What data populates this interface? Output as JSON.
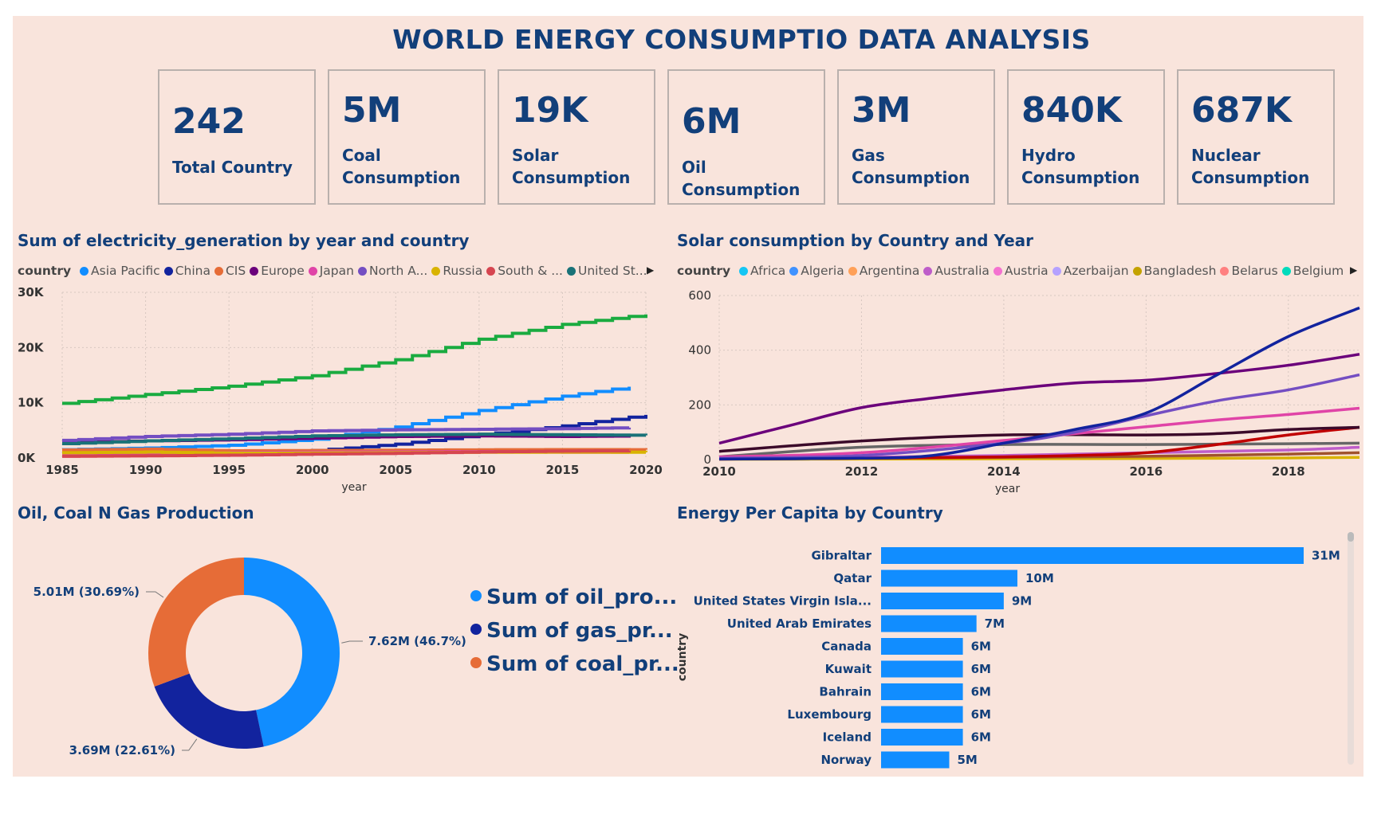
{
  "title": "WORLD ENERGY CONSUMPTIO DATA ANALYSIS",
  "kpis": [
    {
      "value": "242",
      "label": "Total Country"
    },
    {
      "value": "5M",
      "label": "Coal Consumption"
    },
    {
      "value": "19K",
      "label": "Solar Consumption"
    },
    {
      "value": "6M",
      "label": "Oil Consumption"
    },
    {
      "value": "3M",
      "label": "Gas Consumption"
    },
    {
      "value": "840K",
      "label": "Hydro Consumption"
    },
    {
      "value": "687K",
      "label": "Nuclear Consumption"
    }
  ],
  "chart_data": [
    {
      "type": "line",
      "title": "Sum of electricity_generation by year and country",
      "legend_title": "country",
      "legend_placement": "top",
      "xlabel": "year",
      "ylabel": "",
      "xlim": [
        1985,
        2020
      ],
      "ylim": [
        0,
        30000
      ],
      "x_ticks": [
        "1985",
        "1990",
        "1995",
        "2000",
        "2005",
        "2010",
        "2015",
        "2020"
      ],
      "y_ticks": [
        "0K",
        "10K",
        "20K",
        "30K"
      ],
      "grid": true,
      "series": [
        {
          "name": "Asia Pacific",
          "color": "#118dff",
          "x": [
            1985,
            1990,
            1995,
            2000,
            2005,
            2010,
            2015,
            2019
          ],
          "y": [
            1500,
            1800,
            2300,
            3400,
            5600,
            8600,
            11200,
            12900
          ]
        },
        {
          "name": "China",
          "color": "#12239e",
          "x": [
            1985,
            1990,
            1995,
            2000,
            2005,
            2010,
            2015,
            2020
          ],
          "y": [
            400,
            650,
            1000,
            1350,
            2500,
            4200,
            5800,
            7800
          ]
        },
        {
          "name": "CIS",
          "color": "#e66c37",
          "x": [
            1985,
            1990,
            1995,
            2000,
            2005,
            2010,
            2015,
            2020
          ],
          "y": [
            1450,
            1600,
            1300,
            1350,
            1420,
            1480,
            1520,
            1500
          ]
        },
        {
          "name": "Europe",
          "color": "#6b007b",
          "x": [
            1985,
            1990,
            1995,
            2000,
            2005,
            2010,
            2015,
            2019
          ],
          "y": [
            2800,
            3100,
            3300,
            3600,
            3900,
            4000,
            3900,
            4000
          ]
        },
        {
          "name": "Japan",
          "color": "#e044a7",
          "x": [
            1985,
            1990,
            1995,
            2000,
            2005,
            2010,
            2015,
            2019
          ],
          "y": [
            700,
            850,
            950,
            1050,
            1100,
            1150,
            1050,
            1050
          ]
        },
        {
          "name": "North A...",
          "color": "#744ec2",
          "x": [
            1985,
            1990,
            1995,
            2000,
            2005,
            2010,
            2015,
            2019
          ],
          "y": [
            3200,
            3900,
            4300,
            4900,
            5100,
            5200,
            5300,
            5500
          ]
        },
        {
          "name": "Russia",
          "color": "#d9b300",
          "x": [
            1985,
            1990,
            1995,
            2000,
            2005,
            2010,
            2015,
            2020
          ],
          "y": [
            950,
            1080,
            860,
            880,
            950,
            1040,
            1060,
            1050
          ]
        },
        {
          "name": "South & ...",
          "color": "#d64550",
          "x": [
            1985,
            1990,
            1995,
            2000,
            2005,
            2010,
            2015,
            2019
          ],
          "y": [
            300,
            400,
            500,
            700,
            850,
            1100,
            1250,
            1300
          ]
        },
        {
          "name": "United St...",
          "color": "#197278",
          "x": [
            1985,
            1990,
            1995,
            2000,
            2005,
            2010,
            2015,
            2020
          ],
          "y": [
            2600,
            3100,
            3500,
            4000,
            4200,
            4300,
            4200,
            4100
          ]
        },
        {
          "name": "",
          "color": "#1aab40",
          "x": [
            1985,
            1990,
            1995,
            2000,
            2005,
            2010,
            2015,
            2020
          ],
          "y": [
            9900,
            11500,
            13000,
            14900,
            17800,
            21500,
            24200,
            26000
          ]
        }
      ]
    },
    {
      "type": "line",
      "title": "Solar consumption by Country and Year",
      "legend_title": "country",
      "legend_placement": "top",
      "xlabel": "year",
      "ylabel": "",
      "xlim": [
        2010,
        2019
      ],
      "ylim": [
        0,
        600
      ],
      "x_ticks": [
        "2010",
        "2012",
        "2014",
        "2016",
        "2018"
      ],
      "y_ticks": [
        "0",
        "200",
        "400",
        "600"
      ],
      "grid": true,
      "legend_entries": [
        {
          "name": "Africa",
          "color": "#15c6f4"
        },
        {
          "name": "Algeria",
          "color": "#4092ff"
        },
        {
          "name": "Argentina",
          "color": "#ffa058"
        },
        {
          "name": "Australia",
          "color": "#be5dc9"
        },
        {
          "name": "Austria",
          "color": "#f472d0"
        },
        {
          "name": "Azerbaijan",
          "color": "#b5a1ff"
        },
        {
          "name": "Bangladesh",
          "color": "#c4a200"
        },
        {
          "name": "Belarus",
          "color": "#ff8080"
        },
        {
          "name": "Belgium",
          "color": "#00dbbc"
        }
      ],
      "series": [
        {
          "color": "#12239e",
          "x": [
            2010,
            2012,
            2013,
            2014,
            2015,
            2016,
            2017,
            2018,
            2019
          ],
          "y": [
            2,
            5,
            15,
            60,
            110,
            170,
            310,
            450,
            555
          ]
        },
        {
          "color": "#6b007b",
          "x": [
            2010,
            2011,
            2012,
            2013,
            2014,
            2015,
            2016,
            2017,
            2018,
            2019
          ],
          "y": [
            60,
            125,
            190,
            225,
            255,
            280,
            290,
            315,
            345,
            385
          ]
        },
        {
          "color": "#744ec2",
          "x": [
            2010,
            2012,
            2014,
            2015,
            2016,
            2017,
            2018,
            2019
          ],
          "y": [
            5,
            15,
            60,
            100,
            160,
            215,
            255,
            310
          ]
        },
        {
          "color": "#e044a7",
          "x": [
            2010,
            2012,
            2014,
            2015,
            2016,
            2017,
            2018,
            2019
          ],
          "y": [
            10,
            25,
            70,
            95,
            120,
            145,
            165,
            188
          ]
        },
        {
          "color": "#3b0a2a",
          "x": [
            2010,
            2012,
            2014,
            2016,
            2017,
            2018,
            2019
          ],
          "y": [
            30,
            68,
            90,
            90,
            95,
            110,
            118
          ]
        },
        {
          "color": "#c00000",
          "x": [
            2010,
            2012,
            2014,
            2015,
            2016,
            2017,
            2018,
            2019
          ],
          "y": [
            2,
            5,
            10,
            15,
            25,
            55,
            90,
            118
          ]
        },
        {
          "color": "#666666",
          "x": [
            2010,
            2012,
            2014,
            2016,
            2018,
            2019
          ],
          "y": [
            10,
            45,
            55,
            55,
            58,
            60
          ]
        },
        {
          "color": "#be5dc9",
          "x": [
            2010,
            2012,
            2014,
            2016,
            2018,
            2019
          ],
          "y": [
            3,
            8,
            15,
            25,
            35,
            45
          ]
        },
        {
          "color": "#a0522d",
          "x": [
            2010,
            2012,
            2014,
            2016,
            2018,
            2019
          ],
          "y": [
            2,
            5,
            8,
            12,
            20,
            25
          ]
        },
        {
          "color": "#d9b300",
          "x": [
            2010,
            2012,
            2014,
            2016,
            2018,
            2019
          ],
          "y": [
            1,
            2,
            3,
            4,
            6,
            8
          ]
        }
      ]
    },
    {
      "type": "pie",
      "subtype": "donut",
      "title": "Oil, Coal N Gas Production",
      "legend_placement": "right",
      "slices": [
        {
          "name": "Sum of oil_pro...",
          "value": 7.62,
          "label": "7.62M (46.7%)",
          "color": "#118dff"
        },
        {
          "name": "Sum of gas_pr...",
          "value": 3.69,
          "label": "3.69M (22.61%)",
          "color": "#12239e"
        },
        {
          "name": "Sum of coal_pr...",
          "value": 5.01,
          "label": "5.01M (30.69%)",
          "color": "#e66c37"
        }
      ]
    },
    {
      "type": "bar",
      "orientation": "horizontal",
      "title": "Energy Per Capita by Country",
      "ylabel": "country",
      "categories": [
        "Gibraltar",
        "Qatar",
        "United States Virgin Isla...",
        "United Arab Emirates",
        "Canada",
        "Kuwait",
        "Bahrain",
        "Luxembourg",
        "Iceland",
        "Norway"
      ],
      "values": [
        31,
        10,
        9,
        7,
        6,
        6,
        6,
        6,
        6,
        5
      ],
      "unit": "M",
      "data_labels": [
        "31M",
        "10M",
        "9M",
        "7M",
        "6M",
        "6M",
        "6M",
        "6M",
        "6M",
        "5M"
      ],
      "color": "#118dff"
    }
  ]
}
